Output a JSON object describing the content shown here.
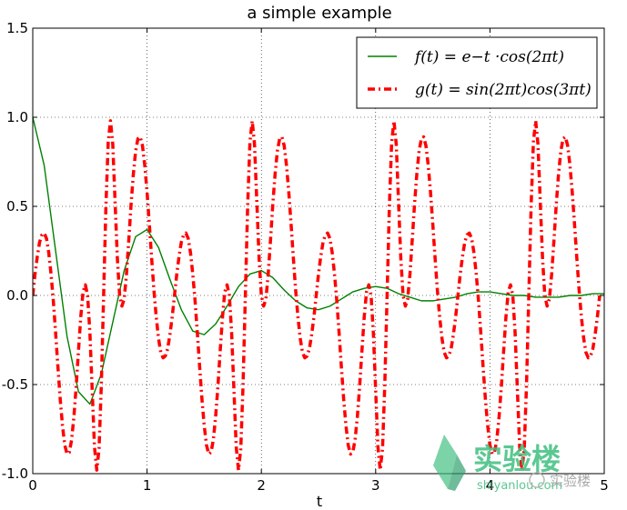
{
  "chart_data": {
    "type": "line",
    "title": "a simple example",
    "xlabel": "t",
    "ylabel": "",
    "xlim": [
      0,
      5
    ],
    "ylim": [
      -1.0,
      1.5
    ],
    "xticks": [
      "0",
      "1",
      "2",
      "3",
      "4",
      "5"
    ],
    "yticks": [
      "1.5",
      "1.0",
      "0.5",
      "0.0",
      "-0.5",
      "-1.0"
    ],
    "grid": true,
    "legend_position": "top-right",
    "series": [
      {
        "name": "f(t) = e^{-t} · cos(2πt)",
        "label_display": "f(t) = e−t ·cos(2πt)",
        "color": "#008000",
        "style": "solid",
        "x": [
          0.0,
          0.1,
          0.2,
          0.3,
          0.4,
          0.5,
          0.6,
          0.7,
          0.8,
          0.9,
          1.0,
          1.1,
          1.2,
          1.3,
          1.4,
          1.5,
          1.6,
          1.7,
          1.8,
          1.9,
          2.0,
          2.1,
          2.2,
          2.3,
          2.4,
          2.5,
          2.6,
          2.7,
          2.8,
          2.9,
          3.0,
          3.1,
          3.2,
          3.3,
          3.4,
          3.5,
          3.6,
          3.7,
          3.8,
          3.9,
          4.0,
          4.1,
          4.2,
          4.3,
          4.4,
          4.5,
          4.6,
          4.7,
          4.8,
          4.9,
          5.0
        ],
        "y": [
          1.0,
          0.73,
          0.25,
          -0.23,
          -0.54,
          -0.61,
          -0.44,
          -0.15,
          0.14,
          0.33,
          0.37,
          0.27,
          0.09,
          -0.08,
          -0.2,
          -0.22,
          -0.16,
          -0.06,
          0.05,
          0.12,
          0.14,
          0.1,
          0.03,
          -0.03,
          -0.07,
          -0.08,
          -0.06,
          -0.02,
          0.02,
          0.04,
          0.05,
          0.04,
          0.01,
          -0.01,
          -0.03,
          -0.03,
          -0.02,
          -0.01,
          0.01,
          0.02,
          0.02,
          0.01,
          0.0,
          0.0,
          -0.01,
          -0.01,
          -0.01,
          0.0,
          0.0,
          0.01,
          0.01
        ]
      },
      {
        "name": "g(t) = sin(2πt) cos(3πt)",
        "label_display": "g(t) = sin(2πt)cos(3πt)",
        "color": "#ff0000",
        "style": "dash-dot",
        "x_step": 0.02,
        "x_start": 0.0,
        "x_end": 5.0,
        "y": [
          0.0,
          0.12,
          0.22,
          0.3,
          0.34,
          0.35,
          0.32,
          0.24,
          0.12,
          -0.03,
          -0.21,
          -0.4,
          -0.58,
          -0.73,
          -0.84,
          -0.89,
          -0.88,
          -0.81,
          -0.68,
          -0.51,
          -0.31,
          -0.12,
          0.02,
          0.06,
          0.0,
          -0.21,
          -0.53,
          -0.85,
          -0.98,
          -0.86,
          -0.5,
          0.0,
          0.5,
          0.86,
          0.98,
          0.85,
          0.53,
          0.21,
          0.0,
          -0.06,
          -0.02,
          0.12,
          0.31,
          0.51,
          0.68,
          0.81,
          0.88,
          0.89,
          0.84,
          0.73,
          0.58,
          0.4,
          0.21,
          0.03,
          -0.12,
          -0.24,
          -0.32,
          -0.35,
          -0.34,
          -0.3,
          -0.22,
          -0.12,
          0.0,
          0.12,
          0.22,
          0.3,
          0.34,
          0.35,
          0.32,
          0.24,
          0.12,
          -0.03,
          -0.21,
          -0.4,
          -0.58,
          -0.73,
          -0.84,
          -0.89,
          -0.88,
          -0.81,
          -0.68,
          -0.51,
          -0.31,
          -0.12,
          0.02,
          0.06,
          0.0,
          -0.21,
          -0.53,
          -0.85,
          -0.98,
          -0.86,
          -0.5,
          0.0,
          0.5,
          0.86,
          0.98,
          0.85,
          0.53,
          0.21,
          0.0,
          -0.06,
          -0.02,
          0.12,
          0.31,
          0.51,
          0.68,
          0.81,
          0.88,
          0.89,
          0.84,
          0.73,
          0.58,
          0.4,
          0.21,
          0.03,
          -0.12,
          -0.24,
          -0.32,
          -0.35,
          -0.34,
          -0.3,
          -0.22,
          -0.12,
          0.0,
          0.12,
          0.22,
          0.3,
          0.34,
          0.35,
          0.32,
          0.24,
          0.12,
          -0.03,
          -0.21,
          -0.4,
          -0.58,
          -0.73,
          -0.84,
          -0.89,
          -0.88,
          -0.81,
          -0.68,
          -0.51,
          -0.31,
          -0.12,
          0.02,
          0.06,
          0.0,
          -0.21,
          -0.53,
          -0.85,
          -0.98,
          -0.86,
          -0.5,
          0.0,
          0.5,
          0.86,
          0.98,
          0.85,
          0.53,
          0.21,
          0.0,
          -0.06,
          -0.02,
          0.12,
          0.31,
          0.51,
          0.68,
          0.81,
          0.88,
          0.89,
          0.84,
          0.73,
          0.58,
          0.4,
          0.21,
          0.03,
          -0.12,
          -0.24,
          -0.32,
          -0.35,
          -0.34,
          -0.3,
          -0.22,
          -0.12,
          0.0,
          0.12,
          0.22,
          0.3,
          0.34,
          0.35,
          0.32,
          0.24,
          0.12,
          -0.03,
          -0.21,
          -0.4,
          -0.58,
          -0.73,
          -0.84,
          -0.89,
          -0.88,
          -0.81,
          -0.68,
          -0.51,
          -0.31,
          -0.12,
          0.02,
          0.06,
          0.0,
          -0.21,
          -0.53,
          -0.85,
          -0.98,
          -0.86,
          -0.5,
          0.0,
          0.5,
          0.86,
          0.98,
          0.85,
          0.53,
          0.21,
          0.0,
          -0.06,
          -0.02,
          0.12,
          0.31,
          0.51,
          0.68,
          0.81,
          0.88,
          0.89,
          0.84,
          0.73,
          0.58,
          0.4,
          0.21,
          0.03,
          -0.12,
          -0.24,
          -0.32,
          -0.35,
          -0.34,
          -0.3,
          -0.22,
          -0.12,
          0.0
        ]
      }
    ]
  },
  "watermark": {
    "text_cn": "实验楼",
    "text_url": "shiyanlou.com",
    "text_wechat": "实验楼",
    "brand_color": "#3fbf7f"
  }
}
